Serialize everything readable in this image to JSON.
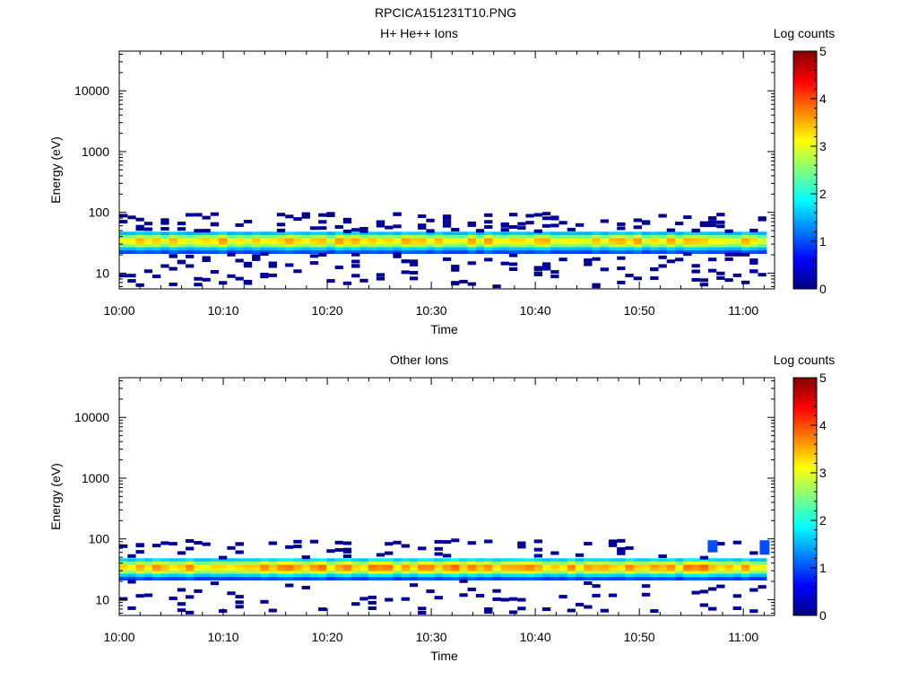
{
  "figure_title": "RPCICA151231T10.PNG",
  "chart_data": [
    {
      "type": "heatmap",
      "title": "H+ He++ Ions",
      "xlabel": "Time",
      "ylabel": "Energy (eV)",
      "y_scale": "log",
      "ylim": [
        5.5,
        45000
      ],
      "xlim": [
        "10:00",
        "11:03"
      ],
      "x_ticks": [
        "10:00",
        "10:10",
        "10:20",
        "10:30",
        "10:40",
        "10:50",
        "11:00"
      ],
      "y_ticks": [
        "10",
        "100",
        "1000",
        "10000"
      ],
      "colorbar": {
        "label": "Log counts",
        "range": [
          0,
          5
        ],
        "ticks": [
          "0",
          "1",
          "2",
          "3",
          "4",
          "5"
        ]
      },
      "band": {
        "center_ev": 32,
        "profile_ev": [
          21,
          24,
          27,
          30,
          34,
          38,
          43,
          48
        ],
        "peak_log_counts": [
          1.0,
          1.6,
          2.6,
          3.2,
          3.3,
          2.6,
          1.6,
          1.0
        ],
        "variation": 0.7
      },
      "sparse_low_counts_ev": {
        "range": [
          6,
          95
        ],
        "log_counts": 0.1,
        "density": 0.33
      }
    },
    {
      "type": "heatmap",
      "title": "Other Ions",
      "xlabel": "Time",
      "ylabel": "Energy (eV)",
      "y_scale": "log",
      "ylim": [
        5.5,
        45000
      ],
      "xlim": [
        "10:00",
        "11:03"
      ],
      "x_ticks": [
        "10:00",
        "10:10",
        "10:20",
        "10:30",
        "10:40",
        "10:50",
        "11:00"
      ],
      "y_ticks": [
        "10",
        "100",
        "1000",
        "10000"
      ],
      "colorbar": {
        "label": "Log counts",
        "range": [
          0,
          5
        ],
        "ticks": [
          "0",
          "1",
          "2",
          "3",
          "4",
          "5"
        ]
      },
      "band": {
        "center_ev": 32,
        "profile_ev": [
          21,
          24,
          27,
          30,
          34,
          38,
          43,
          48
        ],
        "peak_log_counts": [
          1.0,
          1.7,
          2.8,
          3.4,
          3.5,
          2.8,
          1.7,
          1.0
        ],
        "variation": 0.8
      },
      "sparse_low_counts_ev": {
        "range": [
          6,
          95
        ],
        "log_counts": 0.1,
        "density": 0.18
      },
      "enhancements": [
        {
          "time": "10:57",
          "energy_ev": [
            60,
            95
          ],
          "log_counts": 1.0
        },
        {
          "time": "11:02",
          "energy_ev": [
            55,
            95
          ],
          "log_counts": 1.0
        }
      ]
    }
  ]
}
